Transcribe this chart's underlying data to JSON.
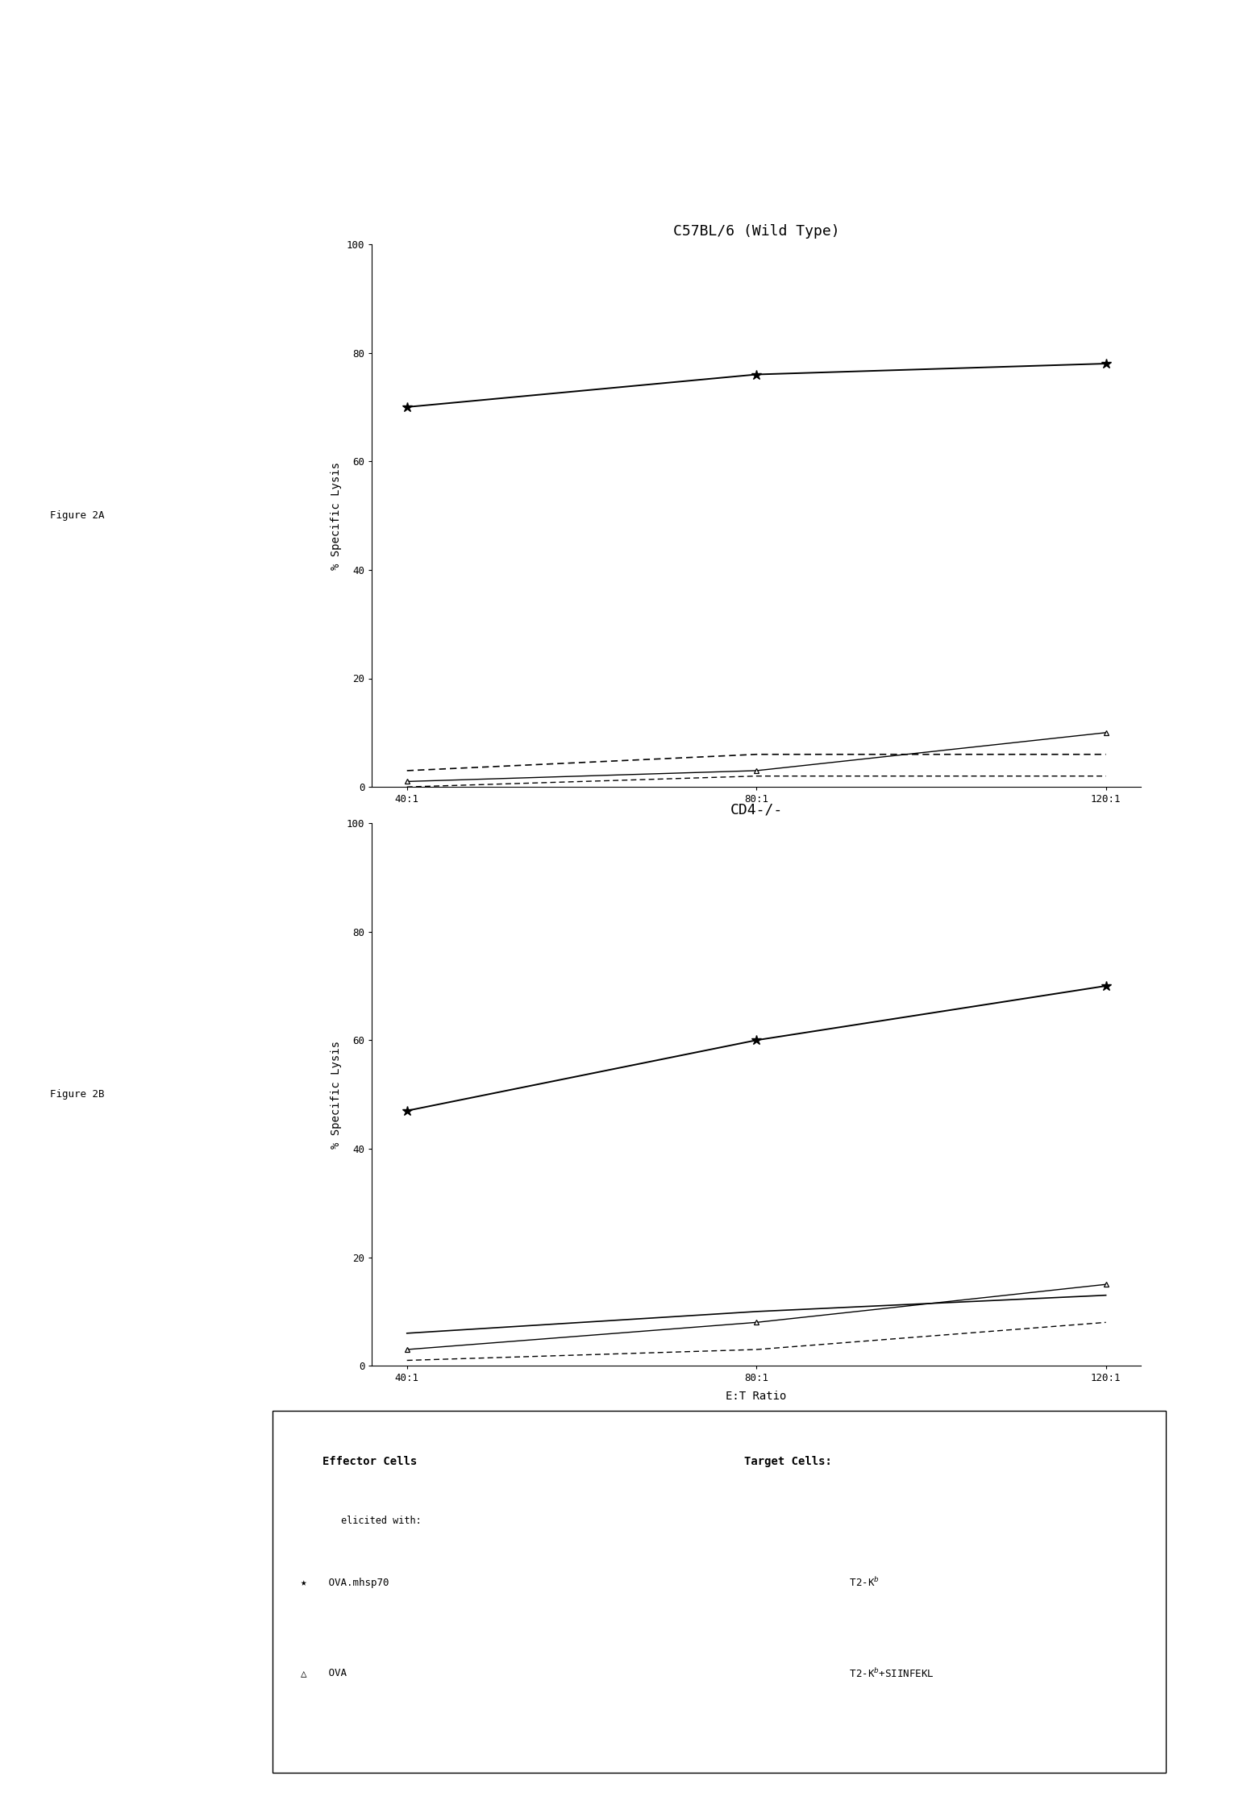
{
  "x_ticks": [
    "40:1",
    "80:1",
    "120:1"
  ],
  "x_values": [
    0,
    1,
    2
  ],
  "fig2A_title": "C57BL/6 (Wild Type)",
  "fig2B_title": "CD4-/-",
  "fig2A_label": "Figure 2A",
  "fig2B_label": "Figure 2B",
  "ylabel": "% Specific Lysis",
  "xlabel": "E:T Ratio",
  "ylim": [
    0,
    100
  ],
  "fig2A": {
    "ova_mhsp70_siinfekl": [
      70,
      76,
      78
    ],
    "ova_mhsp70_t2kb": [
      3,
      6,
      6
    ],
    "ova_siinfekl": [
      1,
      3,
      10
    ],
    "ova_t2kb": [
      0,
      2,
      2
    ]
  },
  "fig2B": {
    "ova_mhsp70_siinfekl": [
      47,
      60,
      70
    ],
    "ova_mhsp70_t2kb": [
      6,
      10,
      13
    ],
    "ova_siinfekl": [
      3,
      8,
      15
    ],
    "ova_t2kb": [
      1,
      3,
      8
    ]
  },
  "background_color": "#ffffff",
  "line_color": "#000000",
  "title_fontsize": 13,
  "label_fontsize": 10,
  "tick_fontsize": 9,
  "fig_label_fontsize": 9
}
